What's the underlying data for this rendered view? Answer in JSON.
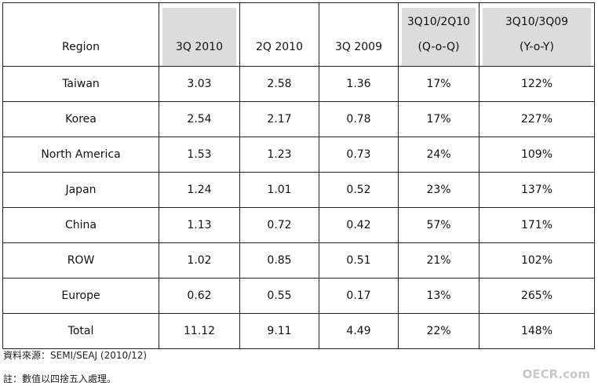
{
  "table": {
    "header": [
      [
        "Region"
      ],
      [
        "3Q 2010"
      ],
      [
        "2Q 2010"
      ],
      [
        "3Q 2009"
      ],
      [
        "3Q10/2Q10",
        "(Q-o-Q)"
      ],
      [
        "3Q10/3Q09",
        "(Y-o-Y)"
      ]
    ],
    "rows": [
      [
        "Taiwan",
        "3.03",
        "2.58",
        "1.36",
        "17%",
        "122%"
      ],
      [
        "Korea",
        "2.54",
        "2.17",
        "0.78",
        "17%",
        "227%"
      ],
      [
        "North America",
        "1.53",
        "1.23",
        "0.73",
        "24%",
        "109%"
      ],
      [
        "Japan",
        "1.24",
        "1.01",
        "0.52",
        "23%",
        "137%"
      ],
      [
        "China",
        "1.13",
        "0.72",
        "0.42",
        "57%",
        "171%"
      ],
      [
        "ROW",
        "1.02",
        "0.85",
        "0.51",
        "21%",
        "102%"
      ],
      [
        "Europe",
        "0.62",
        "0.55",
        "0.17",
        "13%",
        "265%"
      ],
      [
        "Total",
        "11.12",
        "9.11",
        "4.49",
        "22%",
        "148%"
      ]
    ]
  },
  "footer": {
    "source": "資料來源：SEMI/SEAJ (2010/12)",
    "note": "註：數值以四捨五入處理。"
  },
  "watermark": "OECR.com"
}
